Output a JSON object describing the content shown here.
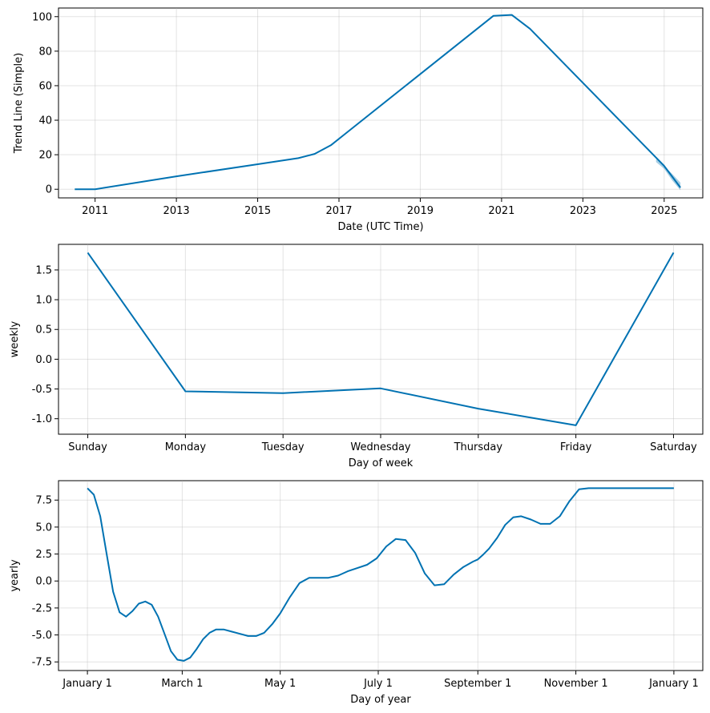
{
  "chart_data": [
    {
      "type": "line",
      "xlabel": "Date (UTC Time)",
      "ylabel": "Trend Line (Simple)",
      "x_ticks": [
        "2011",
        "2013",
        "2015",
        "2017",
        "2019",
        "2021",
        "2023",
        "2025"
      ],
      "y_ticks": [
        "0",
        "20",
        "40",
        "60",
        "80",
        "100"
      ],
      "xlim": [
        2010.1,
        2025.95
      ],
      "ylim": [
        -5,
        105
      ],
      "grid": true,
      "series": [
        {
          "x": [
            2010.5,
            2011.0,
            2013.0,
            2015.0,
            2016.0,
            2016.4,
            2016.8,
            2017.2,
            2020.8,
            2021.25,
            2021.7,
            2025.0,
            2025.4
          ],
          "y": [
            0,
            0,
            7.5,
            14.5,
            18.0,
            20.5,
            25.5,
            33.0,
            100.5,
            101.0,
            93.0,
            13.5,
            1.0
          ]
        }
      ],
      "uncertainty_band": {
        "x": [
          2024.8,
          2025.0,
          2025.2,
          2025.4
        ],
        "upper": [
          17.5,
          13.5,
          8.8,
          3.8
        ],
        "lower": [
          15.8,
          11.8,
          5.0,
          -0.6
        ]
      },
      "color": "#0072b2"
    },
    {
      "type": "line",
      "xlabel": "Day of week",
      "ylabel": "weekly",
      "categories": [
        "Sunday",
        "Monday",
        "Tuesday",
        "Wednesday",
        "Thursday",
        "Friday",
        "Saturday"
      ],
      "y_ticks": [
        "1.5",
        "1.0",
        "0.5",
        "0.0",
        "-0.5",
        "-1.0"
      ],
      "ylim": [
        -1.26,
        1.93
      ],
      "grid": true,
      "series": [
        {
          "values": [
            1.79,
            -0.54,
            -0.57,
            -0.49,
            -0.83,
            -1.11,
            1.79
          ]
        }
      ],
      "color": "#0072b2"
    },
    {
      "type": "line",
      "xlabel": "Day of year",
      "ylabel": "yearly",
      "x_ticks": [
        "January 1",
        "March 1",
        "May 1",
        "July 1",
        "September 1",
        "November 1",
        "January 1"
      ],
      "x_tick_days": [
        0,
        59,
        120,
        181,
        243,
        304,
        365
      ],
      "y_ticks": [
        "7.5",
        "5.0",
        "2.5",
        "0.0",
        "-2.5",
        "-5.0",
        "-7.5"
      ],
      "xlim": [
        -18,
        383
      ],
      "ylim": [
        -8.3,
        9.3
      ],
      "grid": true,
      "series": [
        {
          "x": [
            0,
            4,
            8,
            12,
            16,
            20,
            24,
            28,
            32,
            36,
            40,
            44,
            48,
            52,
            56,
            60,
            64,
            68,
            72,
            76,
            80,
            85,
            90,
            95,
            100,
            105,
            110,
            115,
            120,
            126,
            132,
            138,
            144,
            150,
            156,
            162,
            168,
            174,
            180,
            186,
            192,
            198,
            204,
            210,
            216,
            222,
            228,
            234,
            240,
            243,
            246,
            250,
            255,
            260,
            265,
            270,
            276,
            282,
            288,
            294,
            300,
            306,
            312,
            318,
            324,
            330,
            336,
            342,
            348,
            354,
            360,
            365
          ],
          "y": [
            8.6,
            8.0,
            6.0,
            2.5,
            -1.0,
            -2.9,
            -3.3,
            -2.8,
            -2.1,
            -1.9,
            -2.2,
            -3.3,
            -4.9,
            -6.5,
            -7.3,
            -7.4,
            -7.1,
            -6.3,
            -5.4,
            -4.8,
            -4.5,
            -4.5,
            -4.7,
            -4.9,
            -5.1,
            -5.1,
            -4.8,
            -4.0,
            -3.0,
            -1.5,
            -0.2,
            0.3,
            0.3,
            0.3,
            0.5,
            0.9,
            1.2,
            1.5,
            2.1,
            3.2,
            3.9,
            3.8,
            2.6,
            0.7,
            -0.4,
            -0.3,
            0.6,
            1.3,
            1.8,
            2.0,
            2.4,
            3.0,
            4.0,
            5.2,
            5.9,
            6.0,
            5.7,
            5.3,
            5.3,
            6.0,
            7.4,
            8.5,
            8.6,
            8.6,
            8.6,
            8.6,
            8.6,
            8.6,
            8.6,
            8.6,
            8.6,
            8.6
          ]
        }
      ],
      "color": "#0072b2"
    }
  ]
}
